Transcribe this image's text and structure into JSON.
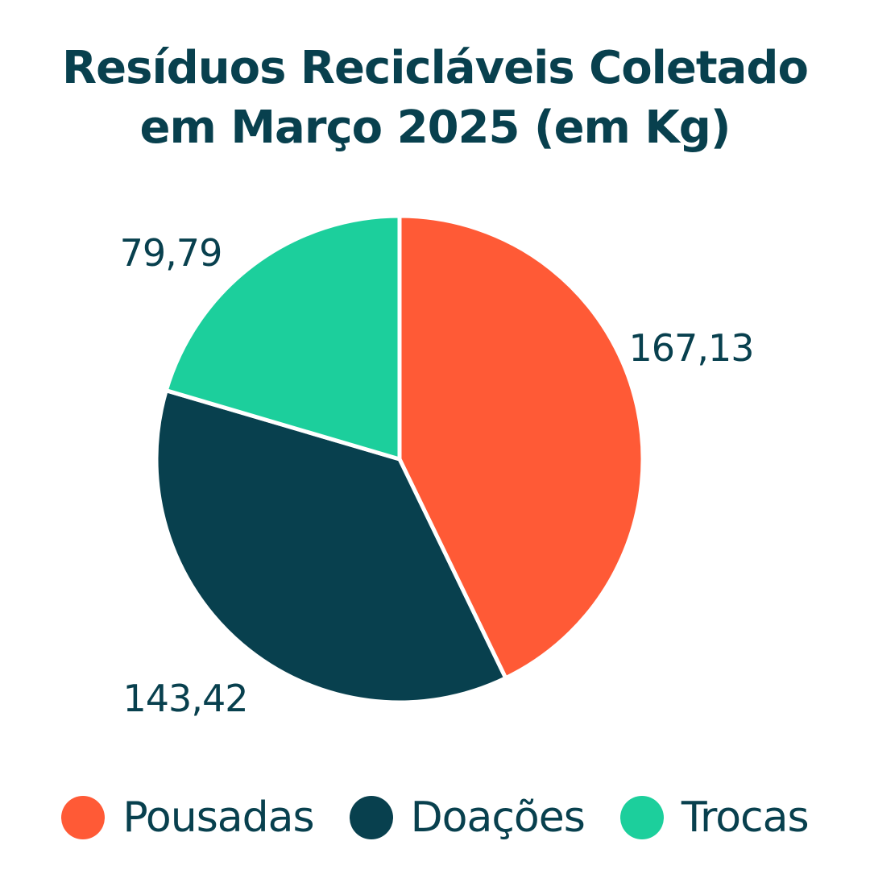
{
  "title_line1": "Resíduos Recicláveis Coletado",
  "title_line2": "em Março 2025 (em Kg)",
  "colors": {
    "text": "#08404e",
    "separator": "#ffffff"
  },
  "chart_data": {
    "type": "pie",
    "title": "Resíduos Recicláveis Coletado em Março 2025 (em Kg)",
    "start_angle_deg": 0,
    "direction": "clockwise",
    "legend_position": "bottom",
    "slices": [
      {
        "name": "Pousadas",
        "value": 167.13,
        "label": "167,13",
        "color": "#ff5a36"
      },
      {
        "name": "Doações",
        "value": 143.42,
        "label": "143,42",
        "color": "#08404e"
      },
      {
        "name": "Trocas",
        "value": 79.79,
        "label": "79,79",
        "color": "#1ccf9c"
      }
    ]
  },
  "legend": [
    {
      "label": "Pousadas",
      "color": "#ff5a36"
    },
    {
      "label": "Doações",
      "color": "#08404e"
    },
    {
      "label": "Trocas",
      "color": "#1ccf9c"
    }
  ]
}
